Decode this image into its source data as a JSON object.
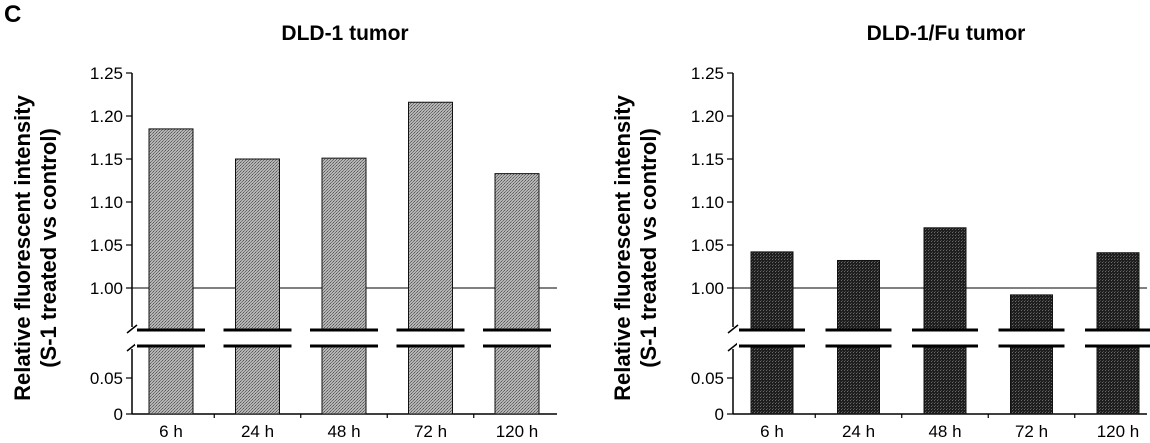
{
  "panel_label": "C",
  "y_axis_label_lines": [
    "Relative fluorescent intensity",
    "(S-1 treated vs control)"
  ],
  "chart_data": [
    {
      "type": "bar",
      "title": "DLD-1 tumor",
      "ylabel": "Relative fluorescent intensity (S-1 treated vs control)",
      "categories": [
        "6 h",
        "24 h",
        "48 h",
        "72 h",
        "120 h"
      ],
      "values": [
        1.185,
        1.15,
        1.151,
        1.216,
        1.133
      ],
      "y_ticks_upper": [
        "1.00",
        "1.05",
        "1.10",
        "1.15",
        "1.20",
        "1.25"
      ],
      "y_ticks_lower": [
        "0",
        "0.05"
      ],
      "ylim": [
        0,
        1.25
      ],
      "axis_break": [
        0.075,
        0.95
      ],
      "reference_line": 1.0,
      "bar_color": "#9e9e9e",
      "bar_pattern": "stipple-light"
    },
    {
      "type": "bar",
      "title": "DLD-1/Fu tumor",
      "ylabel": "Relative fluorescent intensity (S-1 treated vs control)",
      "categories": [
        "6 h",
        "24 h",
        "48 h",
        "72 h",
        "120 h"
      ],
      "values": [
        1.042,
        1.032,
        1.07,
        0.992,
        1.041
      ],
      "y_ticks_upper": [
        "1.00",
        "1.05",
        "1.10",
        "1.15",
        "1.20",
        "1.25"
      ],
      "y_ticks_lower": [
        "0",
        "0.05"
      ],
      "ylim": [
        0,
        1.25
      ],
      "axis_break": [
        0.075,
        0.95
      ],
      "reference_line": 1.0,
      "bar_color": "#2b2b2b",
      "bar_pattern": "stipple-dark"
    }
  ]
}
